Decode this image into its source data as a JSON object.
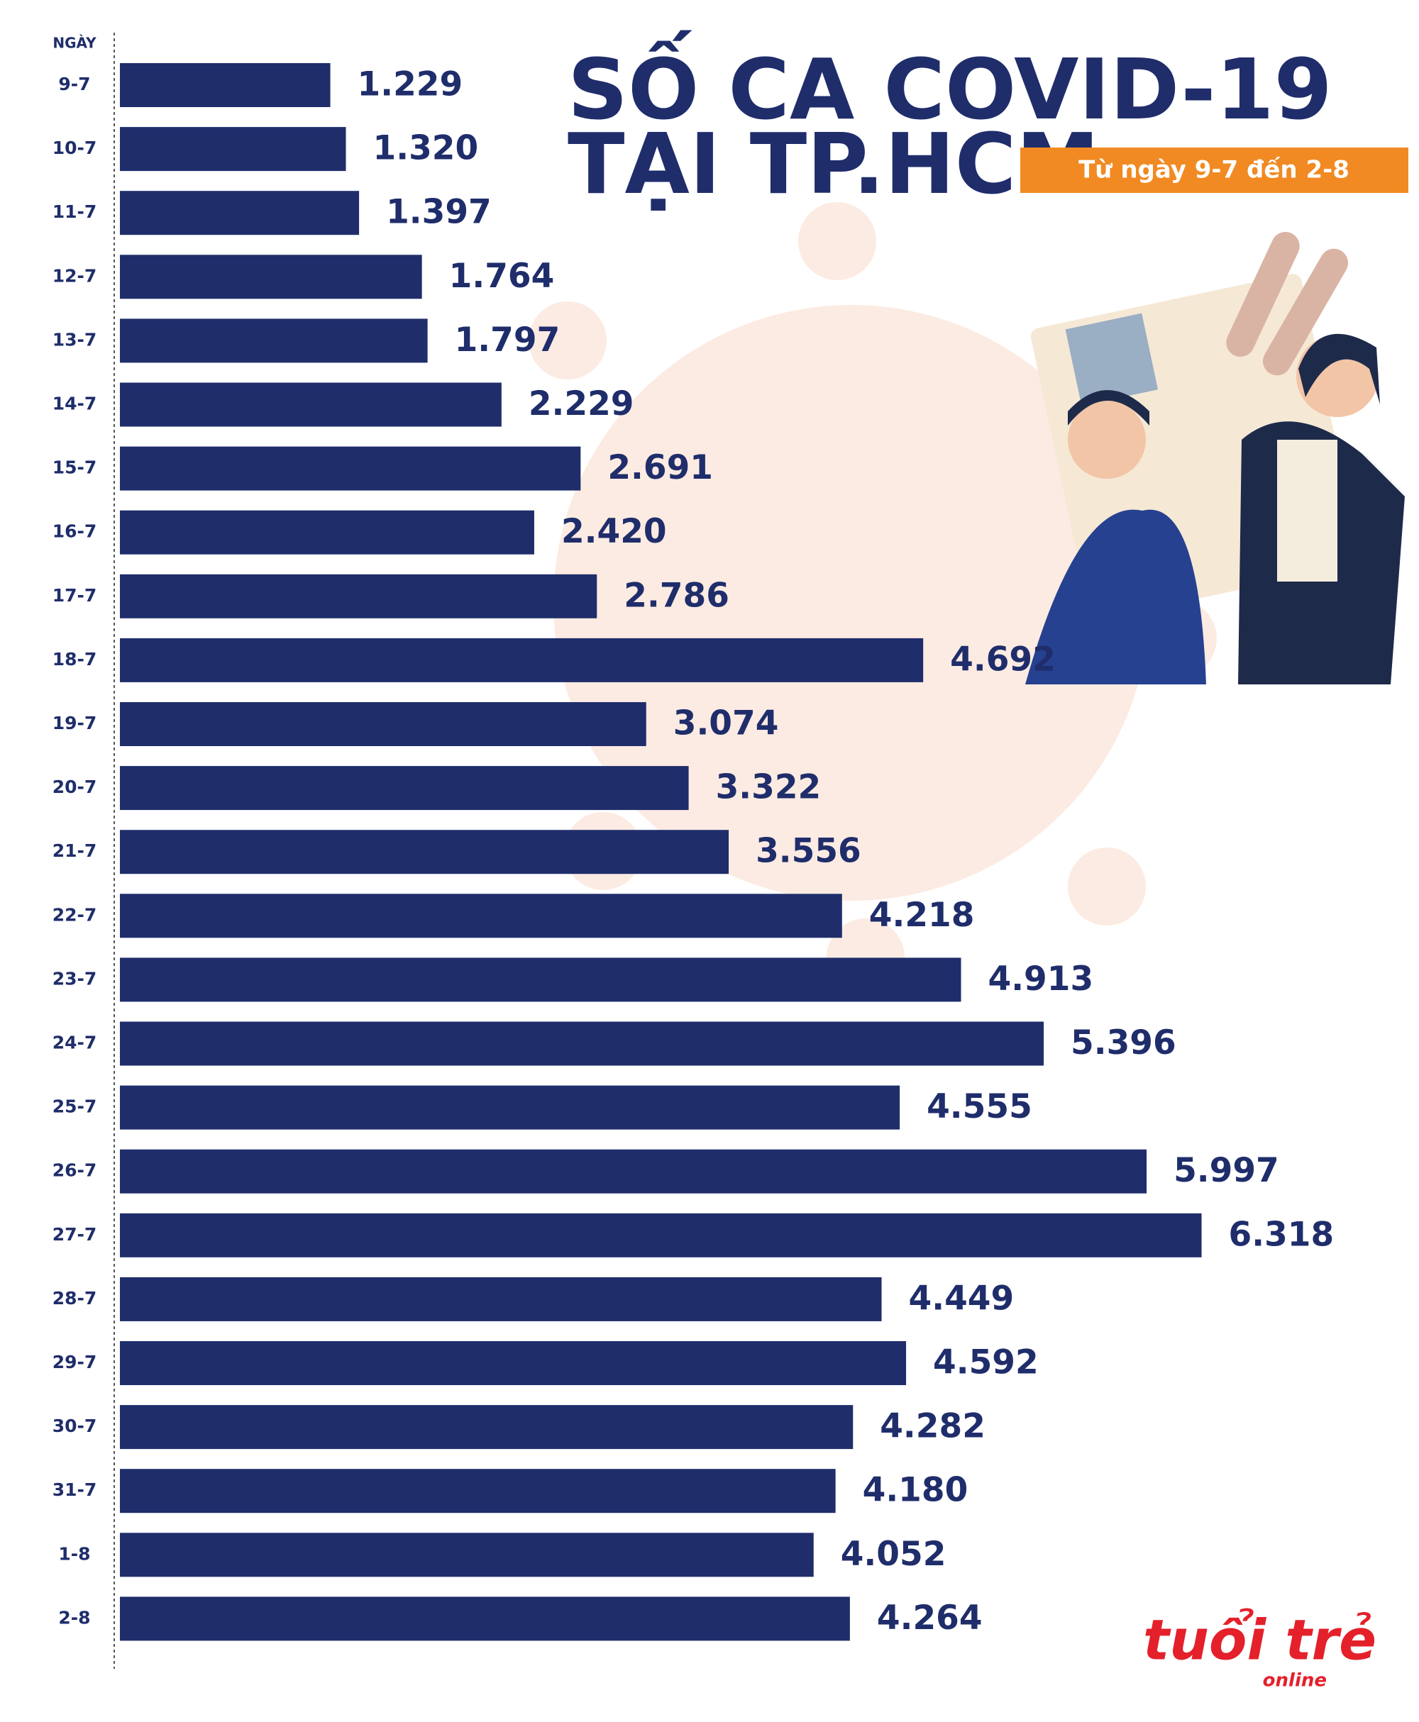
{
  "chart_data": {
    "type": "bar",
    "orientation": "horizontal",
    "title": [
      "SỐ CA COVID-19",
      "TẠI TP.HCM"
    ],
    "subtitle": "Từ ngày 9-7 đến 2-8",
    "y_label": "NGÀY",
    "color": "#1f2d6b",
    "categories": [
      "9-7",
      "10-7",
      "11-7",
      "12-7",
      "13-7",
      "14-7",
      "15-7",
      "16-7",
      "17-7",
      "18-7",
      "19-7",
      "20-7",
      "21-7",
      "22-7",
      "23-7",
      "24-7",
      "25-7",
      "26-7",
      "27-7",
      "28-7",
      "29-7",
      "30-7",
      "31-7",
      "1-8",
      "2-8"
    ],
    "values": [
      1229,
      1320,
      1397,
      1764,
      1797,
      2229,
      2691,
      2420,
      2786,
      4692,
      3074,
      3322,
      3556,
      4218,
      4913,
      5396,
      4555,
      5997,
      6318,
      4449,
      4592,
      4282,
      4180,
      4052,
      4264
    ],
    "value_labels": [
      "1.229",
      "1.320",
      "1.397",
      "1.764",
      "1.797",
      "2.229",
      "2.691",
      "2.420",
      "2.786",
      "4.692",
      "3.074",
      "3.322",
      "3.556",
      "4.218",
      "4.913",
      "5.396",
      "4.555",
      "5.997",
      "6.318",
      "4.449",
      "4.592",
      "4.282",
      "4.180",
      "4.052",
      "4.264"
    ]
  },
  "logo": {
    "name": "tuổi trẻ",
    "sub": "online"
  }
}
